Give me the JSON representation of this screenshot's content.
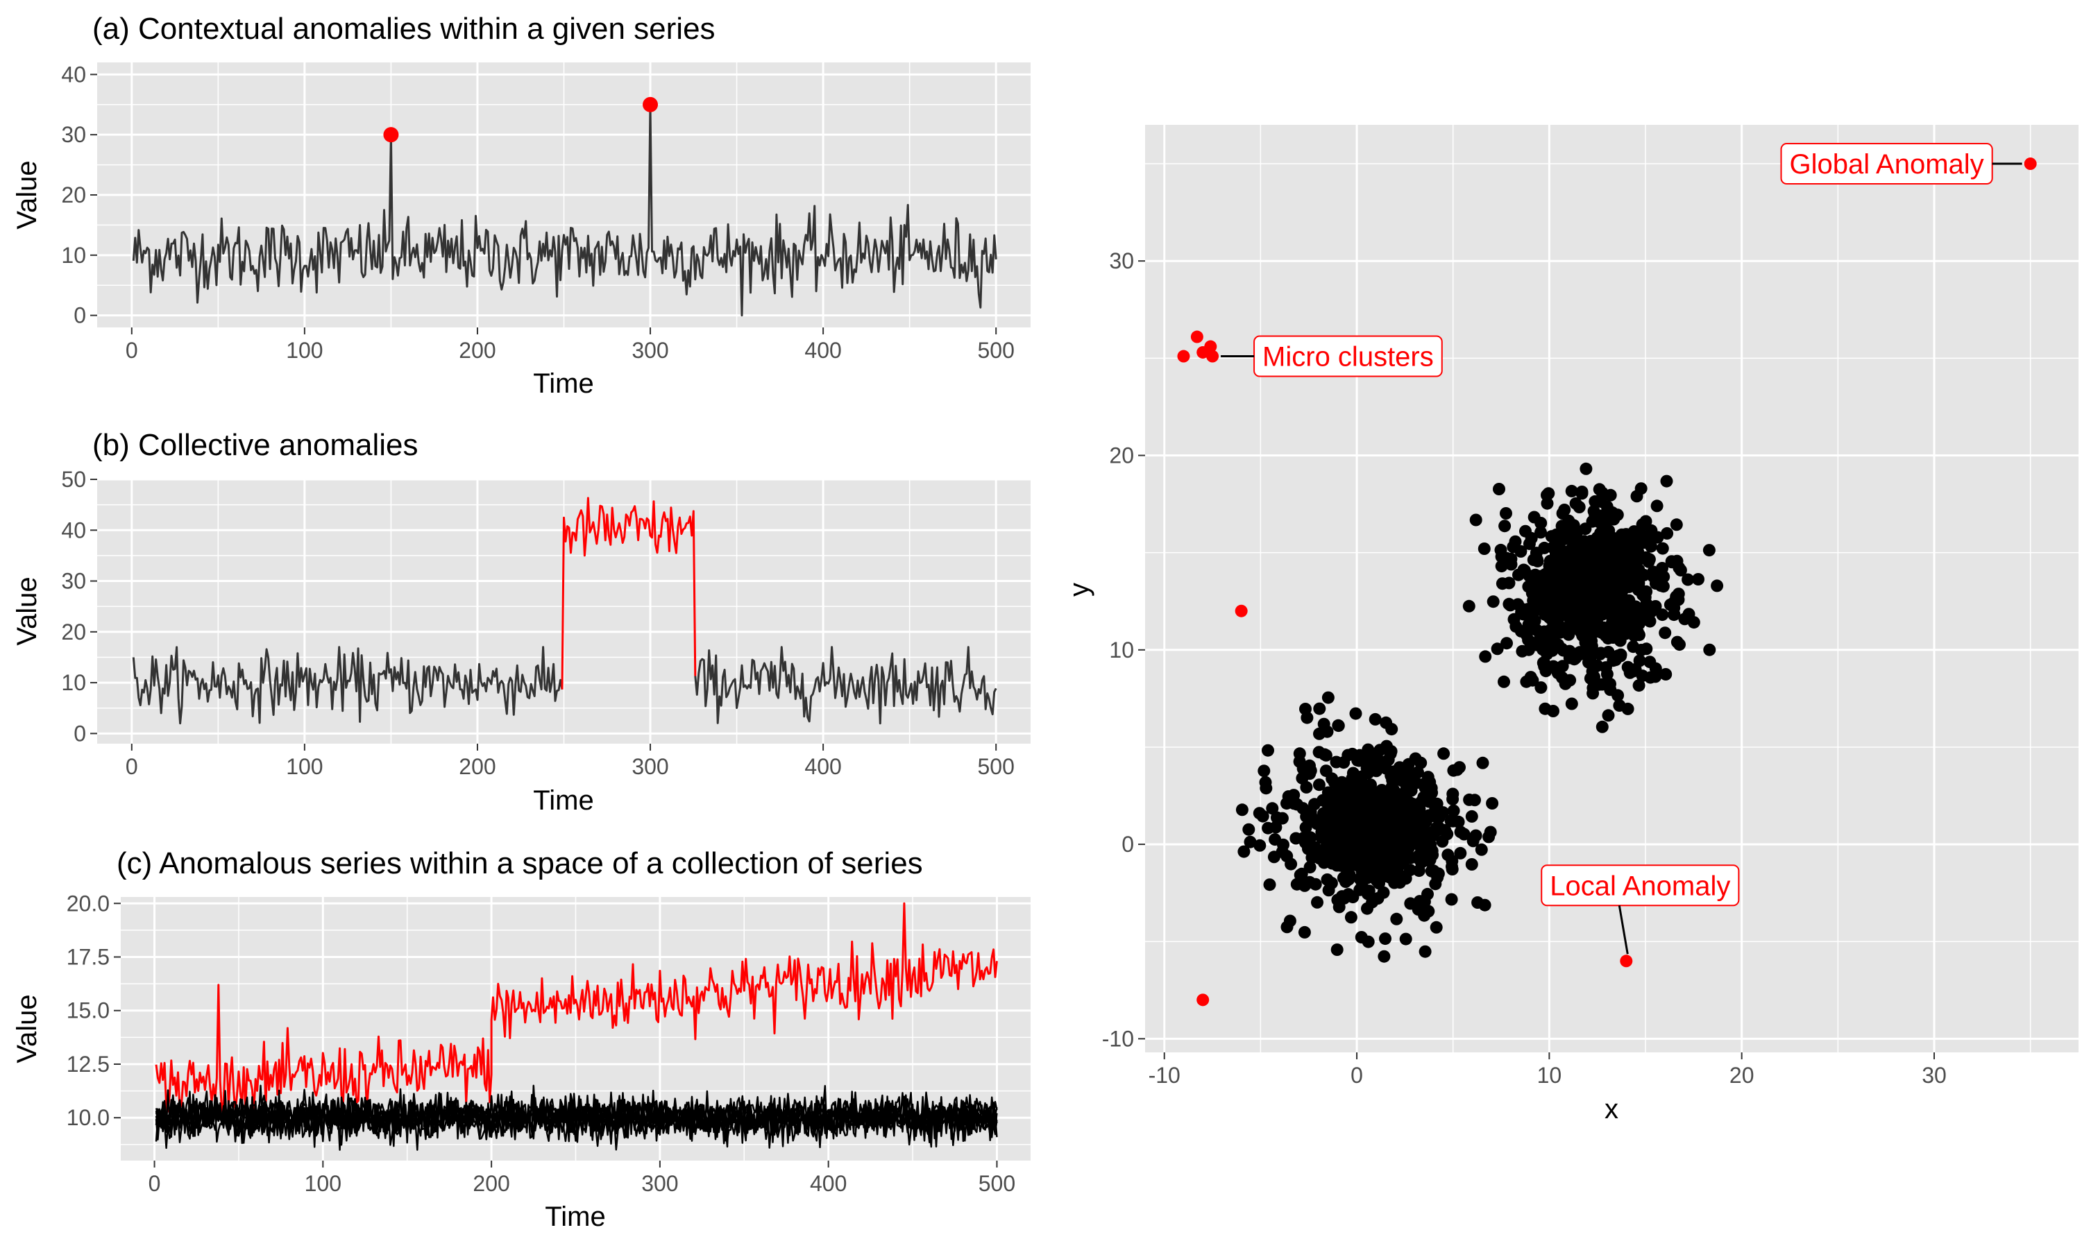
{
  "colors": {
    "panel_background": "#e5e5e5",
    "grid": "#ffffff",
    "normal_series": "#333333",
    "normal_points": "#000000",
    "anomaly": "#ff0000"
  },
  "chart_data": [
    {
      "id": "a",
      "type": "line",
      "title": "(a) Contextual anomalies within a  given series",
      "xlabel": "Time",
      "ylabel": "Value",
      "xlim": [
        -20,
        520
      ],
      "ylim": [
        -2,
        42
      ],
      "x_ticks": [
        0,
        100,
        200,
        300,
        400,
        500
      ],
      "x_tick_labels": [
        "0",
        "100",
        "200",
        "300",
        "400",
        "500"
      ],
      "y_ticks": [
        0,
        10,
        20,
        30,
        40
      ],
      "y_tick_labels": [
        "0",
        "10",
        "20",
        "30",
        "40"
      ],
      "grid": true,
      "series": [
        {
          "role": "normal",
          "color": "#333333",
          "x_range": [
            1,
            500
          ],
          "typical_mean": 10,
          "typical_range": [
            0,
            20
          ]
        }
      ],
      "anomaly_points": [
        {
          "x": 150,
          "y": 30
        },
        {
          "x": 300,
          "y": 35
        }
      ]
    },
    {
      "id": "b",
      "type": "line",
      "title": "(b) Collective anomalies",
      "xlabel": "Time",
      "ylabel": "Value",
      "xlim": [
        -20,
        520
      ],
      "ylim": [
        -2,
        50
      ],
      "x_ticks": [
        0,
        100,
        200,
        300,
        400,
        500
      ],
      "x_tick_labels": [
        "0",
        "100",
        "200",
        "300",
        "400",
        "500"
      ],
      "y_ticks": [
        0,
        10,
        20,
        30,
        40,
        50
      ],
      "y_tick_labels": [
        "0",
        "10",
        "20",
        "30",
        "40",
        "50"
      ],
      "grid": true,
      "series": [
        {
          "role": "normal",
          "color": "#333333",
          "x_range": [
            1,
            500
          ],
          "typical_mean": 10,
          "typical_range": [
            2,
            17
          ]
        },
        {
          "role": "anomalous",
          "color": "#ff0000",
          "x_range": [
            250,
            325
          ],
          "typical_mean": 40,
          "typical_range": [
            30,
            48
          ]
        }
      ]
    },
    {
      "id": "c",
      "type": "line",
      "title": "(c) Anomalous series within a space of a collection of series",
      "xlabel": "Time",
      "ylabel": "Value",
      "xlim": [
        -20,
        520
      ],
      "ylim": [
        8.0,
        20.3
      ],
      "x_ticks": [
        0,
        100,
        200,
        300,
        400,
        500
      ],
      "x_tick_labels": [
        "0",
        "100",
        "200",
        "300",
        "400",
        "500"
      ],
      "y_ticks": [
        10.0,
        12.5,
        15.0,
        17.5,
        20.0
      ],
      "y_tick_labels": [
        "10.0",
        "12.5",
        "15.0",
        "17.5",
        "20.0"
      ],
      "grid": true,
      "series": [
        {
          "role": "normal",
          "color": "#000000",
          "count": 8,
          "x_range": [
            1,
            500
          ],
          "typical_mean": 10,
          "typical_range": [
            8.5,
            11.5
          ]
        },
        {
          "role": "anomalous",
          "color": "#ff0000",
          "x_range": [
            1,
            500
          ],
          "segments": [
            {
              "x_range": [
                1,
                200
              ],
              "mean_start": 11.5,
              "mean_end": 12.3
            },
            {
              "x_range": [
                200,
                500
              ],
              "mean_start": 15.0,
              "mean_end": 17.0
            }
          ]
        }
      ]
    },
    {
      "id": "d",
      "type": "scatter",
      "title": "",
      "xlabel": "x",
      "ylabel": "y",
      "xlim": [
        -11,
        37.5
      ],
      "ylim": [
        -10.7,
        37
      ],
      "x_ticks": [
        -10,
        0,
        10,
        20,
        30
      ],
      "x_tick_labels": [
        "-10",
        "0",
        "10",
        "20",
        "30"
      ],
      "y_ticks": [
        -10,
        0,
        10,
        20,
        30
      ],
      "y_tick_labels": [
        "-10",
        "0",
        "10",
        "20",
        "30"
      ],
      "grid": true,
      "clusters": [
        {
          "center": [
            1,
            1
          ],
          "spread_sd": 2,
          "count": 1000,
          "color": "#000000"
        },
        {
          "center": [
            12,
            13
          ],
          "spread_sd": 2,
          "count": 1000,
          "color": "#000000"
        }
      ],
      "anomaly_points": [
        {
          "x": 35,
          "y": 35
        },
        {
          "x": -9,
          "y": 25.1
        },
        {
          "x": -8.3,
          "y": 26.1
        },
        {
          "x": -8,
          "y": 25.3
        },
        {
          "x": -7.6,
          "y": 25.6
        },
        {
          "x": -7.5,
          "y": 25.1
        },
        {
          "x": -6,
          "y": 12
        },
        {
          "x": -8,
          "y": -8
        },
        {
          "x": 14,
          "y": -6
        }
      ],
      "annotations": [
        {
          "text": "Global Anomaly",
          "x": 35,
          "y": 35
        },
        {
          "text": "Micro clusters",
          "x": -7.5,
          "y": 25.1
        },
        {
          "text": "Local Anomaly",
          "x": 14,
          "y": -6
        }
      ]
    }
  ]
}
